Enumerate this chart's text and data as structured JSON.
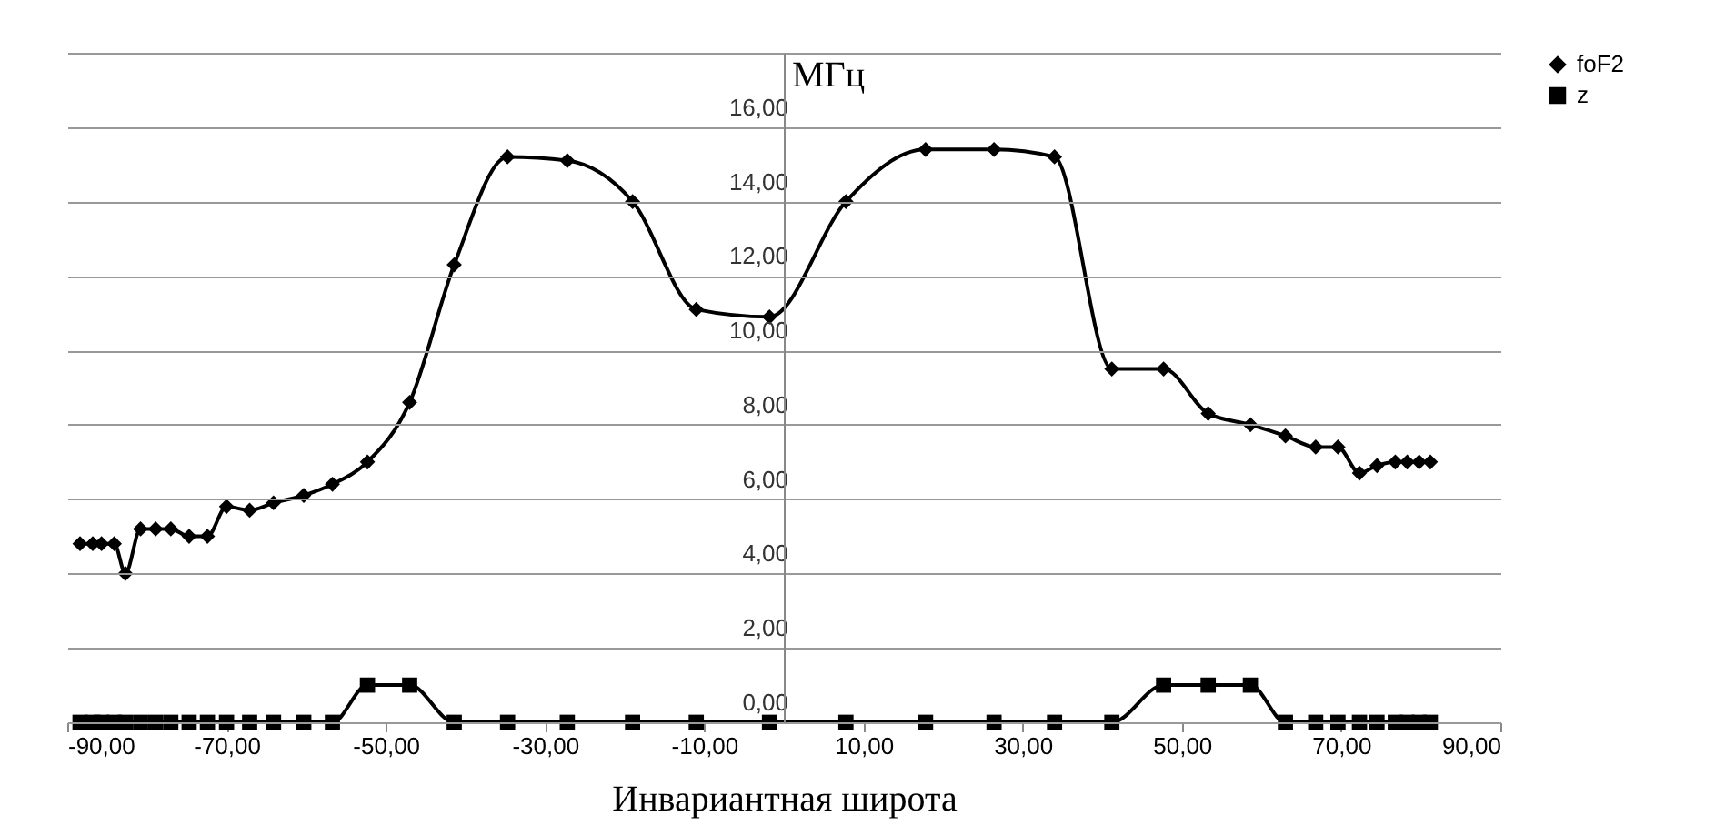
{
  "chart_data": {
    "type": "line",
    "xlabel": "Инвариантная широта",
    "ylabel": "МГц",
    "x": [
      -88.4,
      -86.8,
      -85.7,
      -84.1,
      -82.7,
      -80.8,
      -78.9,
      -77.0,
      -74.7,
      -72.4,
      -70.0,
      -67.1,
      -64.1,
      -60.3,
      -56.7,
      -52.3,
      -47.0,
      -41.4,
      -34.7,
      -27.2,
      -19.0,
      -11.0,
      -1.8,
      7.8,
      17.8,
      26.4,
      34.0,
      41.2,
      47.7,
      53.3,
      58.6,
      63.0,
      66.8,
      69.6,
      72.3,
      74.5,
      76.8,
      78.3,
      79.8,
      81.2
    ],
    "series": [
      {
        "name": "foF2",
        "color": "#000000",
        "marker": "diamond",
        "values": [
          4.8,
          4.8,
          4.8,
          4.8,
          4.0,
          5.2,
          5.2,
          5.2,
          5.0,
          5.0,
          5.8,
          5.7,
          5.9,
          6.1,
          6.4,
          7.0,
          8.6,
          12.3,
          15.2,
          15.1,
          14.0,
          11.1,
          10.9,
          14.0,
          15.4,
          15.4,
          15.2,
          9.5,
          9.5,
          8.3,
          8.0,
          7.7,
          7.4,
          7.4,
          6.7,
          6.9,
          7.0,
          7.0,
          7.0,
          7.0
        ]
      },
      {
        "name": "z",
        "color": "#000000",
        "marker": "square",
        "values": [
          0,
          0,
          0,
          0,
          0,
          0,
          0,
          0,
          0,
          0,
          0,
          0,
          0,
          0,
          0,
          1,
          1,
          0,
          0,
          0,
          0,
          0,
          0,
          0,
          0,
          0,
          0,
          0,
          1,
          1,
          1,
          0,
          0,
          0,
          0,
          0,
          0,
          0,
          0,
          0
        ]
      }
    ],
    "xlim": [
      -90,
      90
    ],
    "xticks": [
      {
        "value": -90,
        "label": "-90,00"
      },
      {
        "value": -70,
        "label": "-70,00"
      },
      {
        "value": -50,
        "label": "-50,00"
      },
      {
        "value": -30,
        "label": "-30,00"
      },
      {
        "value": -10,
        "label": "-10,00"
      },
      {
        "value": 10,
        "label": "10,00"
      },
      {
        "value": 30,
        "label": "30,00"
      },
      {
        "value": 50,
        "label": "50,00"
      },
      {
        "value": 70,
        "label": "70,00"
      },
      {
        "value": 90,
        "label": "90,00"
      }
    ],
    "ylim": [
      0,
      18
    ],
    "yticks": [
      {
        "value": 0,
        "label": "0,00"
      },
      {
        "value": 2,
        "label": "2,00"
      },
      {
        "value": 4,
        "label": "4,00"
      },
      {
        "value": 6,
        "label": "6,00"
      },
      {
        "value": 8,
        "label": "8,00"
      },
      {
        "value": 10,
        "label": "10,00"
      },
      {
        "value": 12,
        "label": "12,00"
      },
      {
        "value": 14,
        "label": "14,00"
      },
      {
        "value": 16,
        "label": "16,00"
      },
      {
        "value": 18,
        "label": null
      }
    ],
    "grid": "y",
    "legend": "right",
    "line_style": "solid"
  }
}
